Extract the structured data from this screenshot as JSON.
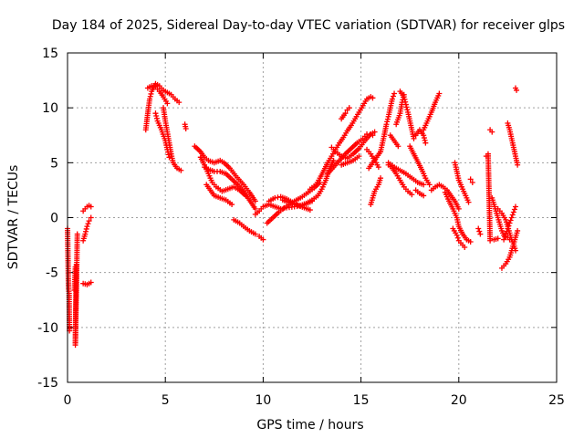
{
  "chart_data": {
    "type": "scatter",
    "title": "Day 184 of 2025, Sidereal Day-to-day VTEC variation (SDTVAR) for receiver glps",
    "xlabel": "GPS time / hours",
    "ylabel": "SDTVAR / TECUs",
    "xlim": [
      0,
      25
    ],
    "ylim": [
      -15,
      15
    ],
    "xticks": [
      0,
      5,
      10,
      15,
      20,
      25
    ],
    "yticks": [
      -15,
      -10,
      -5,
      0,
      5,
      10,
      15
    ],
    "xtick_labels": [
      "0",
      "5",
      "10",
      "15",
      "20",
      "25"
    ],
    "ytick_labels": [
      "-15",
      "-10",
      "-5",
      "0",
      "5",
      "10",
      "15"
    ],
    "grid": true,
    "marker": "+",
    "color": "#ff0000",
    "tracks": [
      [
        [
          0.0,
          -1.0
        ],
        [
          0.05,
          -6.5
        ],
        [
          0.08,
          -6.9
        ],
        [
          0.1,
          -10.3
        ]
      ],
      [
        [
          0.35,
          -6.6
        ],
        [
          0.4,
          -4.5
        ],
        [
          0.45,
          -4.3
        ],
        [
          0.4,
          -11.6
        ],
        [
          0.5,
          -1.5
        ]
      ],
      [
        [
          0.8,
          -6.0
        ],
        [
          1.0,
          -6.1
        ],
        [
          1.2,
          -5.9
        ]
      ],
      [
        [
          0.8,
          -2.1
        ],
        [
          0.9,
          -1.5
        ],
        [
          1.0,
          -0.8
        ],
        [
          1.1,
          -0.3
        ],
        [
          1.2,
          0.0
        ]
      ],
      [
        [
          0.8,
          0.6
        ],
        [
          0.9,
          0.8
        ],
        [
          1.0,
          1.0
        ],
        [
          1.1,
          1.1
        ],
        [
          1.2,
          1.0
        ]
      ],
      [
        [
          4.0,
          8.0
        ],
        [
          4.1,
          9.5
        ],
        [
          4.2,
          10.8
        ],
        [
          4.3,
          11.5
        ],
        [
          4.5,
          12.2
        ],
        [
          4.7,
          12.0
        ],
        [
          4.9,
          11.6
        ],
        [
          5.1,
          11.4
        ],
        [
          5.3,
          11.2
        ],
        [
          5.5,
          10.8
        ],
        [
          5.7,
          10.5
        ]
      ],
      [
        [
          4.1,
          11.8
        ],
        [
          4.3,
          12.0
        ],
        [
          4.5,
          11.9
        ],
        [
          4.7,
          11.5
        ],
        [
          4.9,
          11.0
        ],
        [
          5.1,
          10.4
        ]
      ],
      [
        [
          4.5,
          9.5
        ],
        [
          4.6,
          8.8
        ],
        [
          4.8,
          8.0
        ],
        [
          5.0,
          7.0
        ],
        [
          5.1,
          6.2
        ],
        [
          5.2,
          5.5
        ]
      ],
      [
        [
          4.9,
          10.0
        ],
        [
          5.0,
          8.8
        ],
        [
          5.1,
          7.8
        ],
        [
          5.2,
          6.8
        ],
        [
          5.3,
          5.8
        ],
        [
          5.4,
          5.0
        ],
        [
          5.6,
          4.5
        ],
        [
          5.8,
          4.3
        ]
      ],
      [
        [
          6.0,
          8.5
        ],
        [
          6.05,
          8.1
        ]
      ],
      [
        [
          6.5,
          6.5
        ],
        [
          6.8,
          6.0
        ],
        [
          7.0,
          5.5
        ],
        [
          7.2,
          5.2
        ],
        [
          7.5,
          5.0
        ],
        [
          7.8,
          5.2
        ],
        [
          8.0,
          5.0
        ],
        [
          8.3,
          4.5
        ],
        [
          8.6,
          3.8
        ],
        [
          9.0,
          3.0
        ],
        [
          9.3,
          2.3
        ],
        [
          9.6,
          1.5
        ]
      ],
      [
        [
          6.8,
          5.5
        ],
        [
          7.0,
          4.8
        ],
        [
          7.2,
          4.0
        ],
        [
          7.4,
          3.2
        ],
        [
          7.6,
          2.8
        ],
        [
          7.9,
          2.4
        ],
        [
          8.2,
          2.6
        ],
        [
          8.5,
          2.8
        ],
        [
          8.8,
          2.5
        ],
        [
          9.1,
          2.0
        ]
      ],
      [
        [
          7.0,
          4.6
        ],
        [
          7.2,
          4.4
        ],
        [
          7.5,
          4.2
        ],
        [
          7.8,
          4.2
        ],
        [
          8.1,
          4.0
        ],
        [
          8.4,
          3.5
        ],
        [
          8.7,
          3.0
        ],
        [
          9.0,
          2.4
        ],
        [
          9.3,
          1.6
        ],
        [
          9.6,
          0.8
        ]
      ],
      [
        [
          7.1,
          3.0
        ],
        [
          7.3,
          2.5
        ],
        [
          7.5,
          2.0
        ],
        [
          7.8,
          1.8
        ],
        [
          8.1,
          1.6
        ],
        [
          8.4,
          1.2
        ]
      ],
      [
        [
          8.5,
          -0.2
        ],
        [
          8.8,
          -0.5
        ],
        [
          9.0,
          -0.8
        ],
        [
          9.3,
          -1.2
        ],
        [
          9.6,
          -1.5
        ]
      ],
      [
        [
          9.8,
          -1.7
        ],
        [
          10.0,
          -2.0
        ]
      ],
      [
        [
          9.6,
          0.3
        ],
        [
          9.8,
          0.6
        ],
        [
          10.0,
          1.0
        ],
        [
          10.3,
          1.2
        ],
        [
          10.6,
          1.0
        ],
        [
          10.9,
          0.8
        ],
        [
          11.2,
          0.9
        ],
        [
          11.6,
          1.0
        ],
        [
          12.0,
          1.1
        ],
        [
          12.5,
          1.5
        ]
      ],
      [
        [
          10.2,
          -0.5
        ],
        [
          10.5,
          0.0
        ],
        [
          10.8,
          0.5
        ],
        [
          11.1,
          0.9
        ],
        [
          11.4,
          1.3
        ],
        [
          11.7,
          1.6
        ],
        [
          12.0,
          1.9
        ],
        [
          12.3,
          2.3
        ],
        [
          12.6,
          2.7
        ],
        [
          12.9,
          3.2
        ]
      ],
      [
        [
          10.3,
          1.5
        ],
        [
          10.6,
          1.8
        ],
        [
          10.9,
          1.9
        ],
        [
          11.2,
          1.7
        ],
        [
          11.5,
          1.4
        ],
        [
          11.8,
          1.1
        ],
        [
          12.1,
          0.9
        ],
        [
          12.4,
          0.7
        ]
      ],
      [
        [
          11.0,
          1.6
        ],
        [
          11.3,
          1.4
        ],
        [
          11.6,
          1.2
        ],
        [
          11.9,
          1.1
        ],
        [
          12.2,
          1.3
        ],
        [
          12.5,
          1.6
        ],
        [
          12.8,
          2.0
        ],
        [
          13.0,
          2.6
        ],
        [
          13.2,
          3.4
        ],
        [
          13.4,
          4.5
        ],
        [
          13.6,
          5.2
        ]
      ],
      [
        [
          12.4,
          2.6
        ],
        [
          12.7,
          3.0
        ],
        [
          12.9,
          3.6
        ],
        [
          13.1,
          4.3
        ],
        [
          13.3,
          5.0
        ],
        [
          13.5,
          5.6
        ],
        [
          13.7,
          6.2
        ],
        [
          13.9,
          6.8
        ],
        [
          14.1,
          7.3
        ],
        [
          14.3,
          7.9
        ],
        [
          14.5,
          8.4
        ],
        [
          14.7,
          9.0
        ],
        [
          14.9,
          9.6
        ],
        [
          15.1,
          10.2
        ],
        [
          15.3,
          10.8
        ],
        [
          15.5,
          11.0
        ],
        [
          15.6,
          10.9
        ]
      ],
      [
        [
          13.3,
          4.0
        ],
        [
          13.6,
          4.6
        ],
        [
          13.9,
          5.2
        ],
        [
          14.2,
          5.8
        ],
        [
          14.5,
          6.3
        ],
        [
          14.8,
          6.8
        ],
        [
          15.1,
          7.2
        ],
        [
          15.3,
          7.6
        ],
        [
          15.6,
          7.5
        ]
      ],
      [
        [
          13.5,
          6.4
        ],
        [
          13.7,
          6.0
        ],
        [
          14.0,
          5.6
        ],
        [
          14.3,
          5.4
        ],
        [
          14.6,
          5.8
        ],
        [
          14.9,
          6.3
        ],
        [
          15.2,
          7.0
        ],
        [
          15.5,
          7.6
        ],
        [
          15.7,
          7.8
        ]
      ],
      [
        [
          14.0,
          9.0
        ],
        [
          14.2,
          9.5
        ],
        [
          14.3,
          9.8
        ],
        [
          14.4,
          10.0
        ]
      ],
      [
        [
          15.3,
          6.2
        ],
        [
          15.5,
          5.8
        ],
        [
          15.7,
          5.2
        ],
        [
          15.9,
          4.6
        ]
      ],
      [
        [
          14.0,
          4.8
        ],
        [
          14.3,
          5.0
        ],
        [
          14.6,
          5.2
        ],
        [
          14.9,
          5.6
        ]
      ],
      [
        [
          15.4,
          4.5
        ],
        [
          15.6,
          5.0
        ],
        [
          15.8,
          5.5
        ],
        [
          16.0,
          6.0
        ]
      ],
      [
        [
          15.5,
          1.2
        ],
        [
          15.6,
          1.8
        ],
        [
          15.7,
          2.4
        ],
        [
          15.9,
          3.0
        ],
        [
          16.0,
          3.6
        ]
      ],
      [
        [
          16.0,
          6.0
        ],
        [
          16.1,
          6.8
        ],
        [
          16.2,
          7.6
        ],
        [
          16.3,
          8.5
        ],
        [
          16.4,
          9.2
        ],
        [
          16.5,
          10.0
        ],
        [
          16.6,
          10.8
        ],
        [
          16.7,
          11.3
        ]
      ],
      [
        [
          16.4,
          4.8
        ],
        [
          16.6,
          4.5
        ],
        [
          16.8,
          4.0
        ],
        [
          17.0,
          3.4
        ],
        [
          17.2,
          2.8
        ],
        [
          17.4,
          2.4
        ],
        [
          17.6,
          2.1
        ]
      ],
      [
        [
          16.5,
          7.5
        ],
        [
          16.7,
          7.0
        ],
        [
          16.9,
          6.5
        ]
      ],
      [
        [
          16.8,
          8.5
        ],
        [
          17.0,
          9.5
        ],
        [
          17.1,
          10.5
        ],
        [
          17.2,
          11.2
        ]
      ],
      [
        [
          17.0,
          11.5
        ],
        [
          17.2,
          11.0
        ],
        [
          17.3,
          10.3
        ],
        [
          17.4,
          9.6
        ],
        [
          17.5,
          8.8
        ],
        [
          17.6,
          8.0
        ],
        [
          17.7,
          7.2
        ]
      ],
      [
        [
          16.4,
          5.0
        ],
        [
          16.7,
          4.6
        ],
        [
          17.0,
          4.3
        ],
        [
          17.3,
          4.0
        ],
        [
          17.6,
          3.6
        ],
        [
          17.9,
          3.2
        ],
        [
          18.2,
          3.0
        ]
      ],
      [
        [
          17.5,
          6.5
        ],
        [
          17.7,
          5.8
        ],
        [
          17.9,
          5.1
        ],
        [
          18.1,
          4.4
        ],
        [
          18.3,
          3.6
        ],
        [
          18.5,
          3.0
        ]
      ],
      [
        [
          17.8,
          2.5
        ],
        [
          18.0,
          2.2
        ],
        [
          18.2,
          2.0
        ]
      ],
      [
        [
          17.8,
          7.5
        ],
        [
          18.0,
          8.0
        ],
        [
          18.2,
          7.5
        ],
        [
          18.3,
          6.8
        ]
      ],
      [
        [
          18.2,
          8.0
        ],
        [
          18.4,
          8.8
        ],
        [
          18.6,
          9.6
        ],
        [
          18.8,
          10.5
        ],
        [
          19.0,
          11.3
        ]
      ],
      [
        [
          18.6,
          2.5
        ],
        [
          18.8,
          2.8
        ],
        [
          19.0,
          3.0
        ],
        [
          19.2,
          2.8
        ],
        [
          19.4,
          2.5
        ],
        [
          19.6,
          2.0
        ],
        [
          19.8,
          1.5
        ],
        [
          20.0,
          0.8
        ]
      ],
      [
        [
          19.3,
          2.3
        ],
        [
          19.5,
          1.5
        ],
        [
          19.7,
          0.8
        ],
        [
          19.9,
          0.0
        ],
        [
          20.0,
          -0.8
        ],
        [
          20.2,
          -1.5
        ],
        [
          20.4,
          -2.0
        ],
        [
          20.6,
          -2.2
        ]
      ],
      [
        [
          19.7,
          -1.0
        ],
        [
          19.9,
          -1.6
        ],
        [
          20.0,
          -2.1
        ],
        [
          20.2,
          -2.5
        ],
        [
          20.3,
          -2.7
        ]
      ],
      [
        [
          19.8,
          5.0
        ],
        [
          19.9,
          4.2
        ],
        [
          20.0,
          3.4
        ],
        [
          20.2,
          2.6
        ],
        [
          20.4,
          1.8
        ],
        [
          20.5,
          1.4
        ]
      ],
      [
        [
          20.6,
          3.5
        ],
        [
          20.7,
          3.2
        ]
      ],
      [
        [
          21.0,
          -1.0
        ],
        [
          21.1,
          -1.5
        ]
      ],
      [
        [
          21.4,
          5.6
        ],
        [
          21.5,
          5.8
        ],
        [
          21.6,
          -2.1
        ]
      ],
      [
        [
          21.6,
          8.0
        ],
        [
          21.7,
          7.8
        ]
      ],
      [
        [
          21.7,
          1.8
        ],
        [
          21.8,
          1.2
        ],
        [
          21.9,
          0.6
        ],
        [
          22.0,
          0.0
        ],
        [
          22.1,
          -0.6
        ],
        [
          22.2,
          -1.2
        ],
        [
          22.3,
          -1.6
        ],
        [
          22.5,
          -1.8
        ],
        [
          22.6,
          -2.0
        ]
      ],
      [
        [
          21.8,
          -2.0
        ],
        [
          22.0,
          -1.9
        ]
      ],
      [
        [
          22.2,
          -4.6
        ],
        [
          22.4,
          -4.2
        ],
        [
          22.6,
          -3.6
        ],
        [
          22.7,
          -3.0
        ],
        [
          22.8,
          -2.4
        ],
        [
          22.9,
          -1.8
        ],
        [
          23.0,
          -1.2
        ]
      ],
      [
        [
          22.0,
          0.8
        ],
        [
          22.2,
          0.4
        ],
        [
          22.4,
          -0.2
        ],
        [
          22.5,
          -0.8
        ],
        [
          22.6,
          -1.4
        ],
        [
          22.7,
          -2.0
        ],
        [
          22.8,
          -2.4
        ],
        [
          22.9,
          -3.0
        ]
      ],
      [
        [
          22.3,
          -2.0
        ],
        [
          22.4,
          -1.5
        ],
        [
          22.5,
          -1.0
        ],
        [
          22.6,
          -0.5
        ],
        [
          22.7,
          0.0
        ],
        [
          22.8,
          0.5
        ],
        [
          22.9,
          1.0
        ]
      ],
      [
        [
          22.5,
          8.6
        ],
        [
          22.6,
          8.0
        ],
        [
          22.7,
          7.2
        ],
        [
          22.8,
          6.4
        ],
        [
          22.9,
          5.6
        ],
        [
          23.0,
          4.8
        ]
      ],
      [
        [
          22.9,
          11.8
        ],
        [
          22.95,
          11.6
        ]
      ]
    ]
  }
}
